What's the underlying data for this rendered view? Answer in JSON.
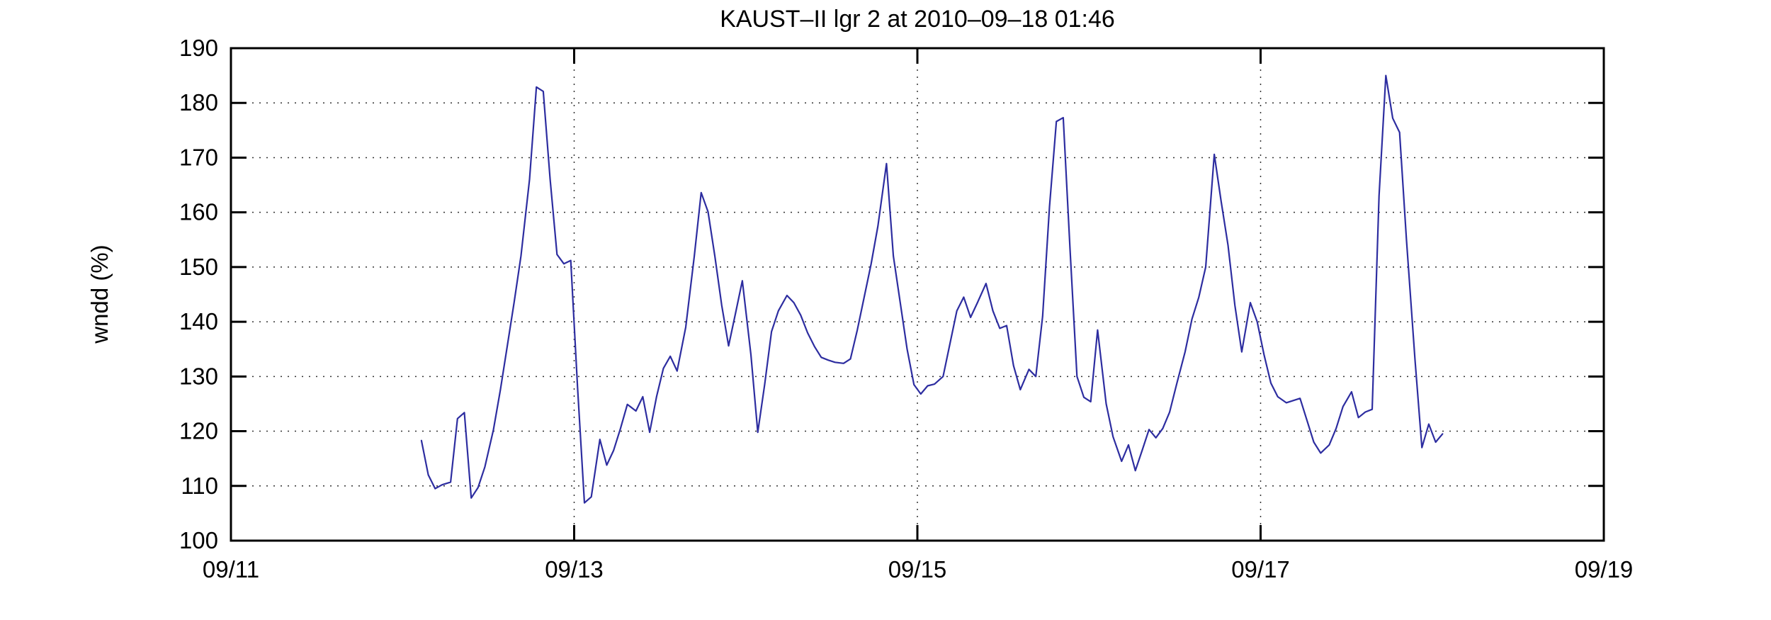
{
  "title": "KAUST–II lgr 2 at 2010–09–18 01:46",
  "chart_data": {
    "type": "line",
    "title": "KAUST–II lgr 2 at 2010–09–18 01:46",
    "xlabel": "",
    "ylabel": "wndd (%)",
    "xlim": [
      11,
      19
    ],
    "ylim": [
      100,
      190
    ],
    "grid": "dotted",
    "grid_color": "#333333",
    "axis_color": "#000000",
    "background_color": "#ffffff",
    "x_ticks": [
      {
        "label": "09/11",
        "value": 11
      },
      {
        "label": "09/13",
        "value": 13
      },
      {
        "label": "09/15",
        "value": 15
      },
      {
        "label": "09/17",
        "value": 17
      },
      {
        "label": "09/19",
        "value": 19
      }
    ],
    "grid_x_values": [
      13,
      15,
      17
    ],
    "y_ticks": [
      100,
      110,
      120,
      130,
      140,
      150,
      160,
      170,
      180,
      190
    ],
    "x_unit_note": "day of September 2010 (MM/DD)",
    "series": [
      {
        "name": "wndd",
        "color": "#2d2da0",
        "points": [
          [
            12.11,
            118.3
          ],
          [
            12.15,
            112.0
          ],
          [
            12.19,
            109.5
          ],
          [
            12.23,
            110.2
          ],
          [
            12.28,
            110.7
          ],
          [
            12.32,
            122.3
          ],
          [
            12.36,
            123.4
          ],
          [
            12.4,
            107.8
          ],
          [
            12.44,
            109.7
          ],
          [
            12.48,
            113.5
          ],
          [
            12.53,
            120.3
          ],
          [
            12.57,
            127.5
          ],
          [
            12.61,
            135.5
          ],
          [
            12.65,
            143.5
          ],
          [
            12.69,
            152.0
          ],
          [
            12.74,
            166.0
          ],
          [
            12.78,
            182.9
          ],
          [
            12.82,
            182.1
          ],
          [
            12.86,
            166.0
          ],
          [
            12.9,
            152.3
          ],
          [
            12.94,
            150.6
          ],
          [
            12.98,
            151.2
          ],
          [
            13.02,
            128.0
          ],
          [
            13.06,
            106.9
          ],
          [
            13.1,
            108.0
          ],
          [
            13.15,
            118.5
          ],
          [
            13.19,
            113.8
          ],
          [
            13.23,
            116.5
          ],
          [
            13.27,
            120.5
          ],
          [
            13.31,
            124.9
          ],
          [
            13.36,
            123.7
          ],
          [
            13.4,
            126.3
          ],
          [
            13.44,
            119.8
          ],
          [
            13.48,
            126.3
          ],
          [
            13.52,
            131.5
          ],
          [
            13.56,
            133.7
          ],
          [
            13.6,
            131.0
          ],
          [
            13.65,
            139.0
          ],
          [
            13.7,
            152.0
          ],
          [
            13.74,
            163.6
          ],
          [
            13.78,
            160.1
          ],
          [
            13.82,
            152.0
          ],
          [
            13.86,
            143.0
          ],
          [
            13.9,
            135.6
          ],
          [
            13.94,
            141.5
          ],
          [
            13.98,
            147.5
          ],
          [
            14.03,
            134.0
          ],
          [
            14.07,
            119.8
          ],
          [
            14.11,
            128.5
          ],
          [
            14.15,
            138.2
          ],
          [
            14.19,
            142.0
          ],
          [
            14.24,
            144.8
          ],
          [
            14.28,
            143.5
          ],
          [
            14.32,
            141.2
          ],
          [
            14.36,
            138.0
          ],
          [
            14.4,
            135.5
          ],
          [
            14.44,
            133.5
          ],
          [
            14.48,
            133.0
          ],
          [
            14.52,
            132.6
          ],
          [
            14.57,
            132.4
          ],
          [
            14.61,
            133.2
          ],
          [
            14.65,
            138.5
          ],
          [
            14.69,
            144.5
          ],
          [
            14.73,
            150.5
          ],
          [
            14.77,
            157.5
          ],
          [
            14.82,
            168.9
          ],
          [
            14.86,
            152.0
          ],
          [
            14.9,
            143.5
          ],
          [
            14.94,
            135.0
          ],
          [
            14.98,
            128.5
          ],
          [
            15.02,
            126.8
          ],
          [
            15.06,
            128.3
          ],
          [
            15.1,
            128.6
          ],
          [
            15.15,
            130.0
          ],
          [
            15.19,
            136.0
          ],
          [
            15.23,
            142.0
          ],
          [
            15.27,
            144.5
          ],
          [
            15.31,
            140.8
          ],
          [
            15.35,
            143.5
          ],
          [
            15.4,
            147.0
          ],
          [
            15.44,
            142.0
          ],
          [
            15.48,
            138.8
          ],
          [
            15.52,
            139.3
          ],
          [
            15.56,
            132.0
          ],
          [
            15.6,
            127.6
          ],
          [
            15.65,
            131.3
          ],
          [
            15.69,
            130.0
          ],
          [
            15.73,
            141.0
          ],
          [
            15.77,
            161.0
          ],
          [
            15.81,
            176.6
          ],
          [
            15.85,
            177.3
          ],
          [
            15.89,
            153.0
          ],
          [
            15.93,
            130.0
          ],
          [
            15.97,
            126.2
          ],
          [
            16.01,
            125.4
          ],
          [
            16.05,
            138.5
          ],
          [
            16.1,
            125.0
          ],
          [
            16.14,
            119.0
          ],
          [
            16.19,
            114.5
          ],
          [
            16.23,
            117.5
          ],
          [
            16.27,
            112.8
          ],
          [
            16.31,
            116.5
          ],
          [
            16.35,
            120.3
          ],
          [
            16.39,
            118.8
          ],
          [
            16.43,
            120.5
          ],
          [
            16.47,
            123.5
          ],
          [
            16.51,
            128.5
          ],
          [
            16.56,
            134.5
          ],
          [
            16.6,
            140.5
          ],
          [
            16.64,
            144.5
          ],
          [
            16.68,
            150.0
          ],
          [
            16.73,
            170.6
          ],
          [
            16.77,
            162.0
          ],
          [
            16.81,
            154.0
          ],
          [
            16.85,
            143.0
          ],
          [
            16.89,
            134.5
          ],
          [
            16.94,
            143.5
          ],
          [
            16.98,
            140.0
          ],
          [
            17.02,
            134.0
          ],
          [
            17.06,
            128.8
          ],
          [
            17.1,
            126.3
          ],
          [
            17.15,
            125.2
          ],
          [
            17.19,
            125.6
          ],
          [
            17.23,
            126.0
          ],
          [
            17.27,
            122.0
          ],
          [
            17.31,
            118.0
          ],
          [
            17.35,
            116.0
          ],
          [
            17.4,
            117.5
          ],
          [
            17.44,
            120.5
          ],
          [
            17.48,
            124.5
          ],
          [
            17.53,
            127.2
          ],
          [
            17.57,
            122.5
          ],
          [
            17.61,
            123.5
          ],
          [
            17.65,
            124.0
          ],
          [
            17.69,
            163.0
          ],
          [
            17.73,
            185.0
          ],
          [
            17.77,
            177.2
          ],
          [
            17.81,
            174.6
          ],
          [
            17.85,
            155.0
          ],
          [
            17.9,
            133.0
          ],
          [
            17.94,
            117.0
          ],
          [
            17.98,
            121.3
          ],
          [
            18.02,
            118.0
          ],
          [
            18.06,
            119.5
          ]
        ]
      }
    ]
  }
}
